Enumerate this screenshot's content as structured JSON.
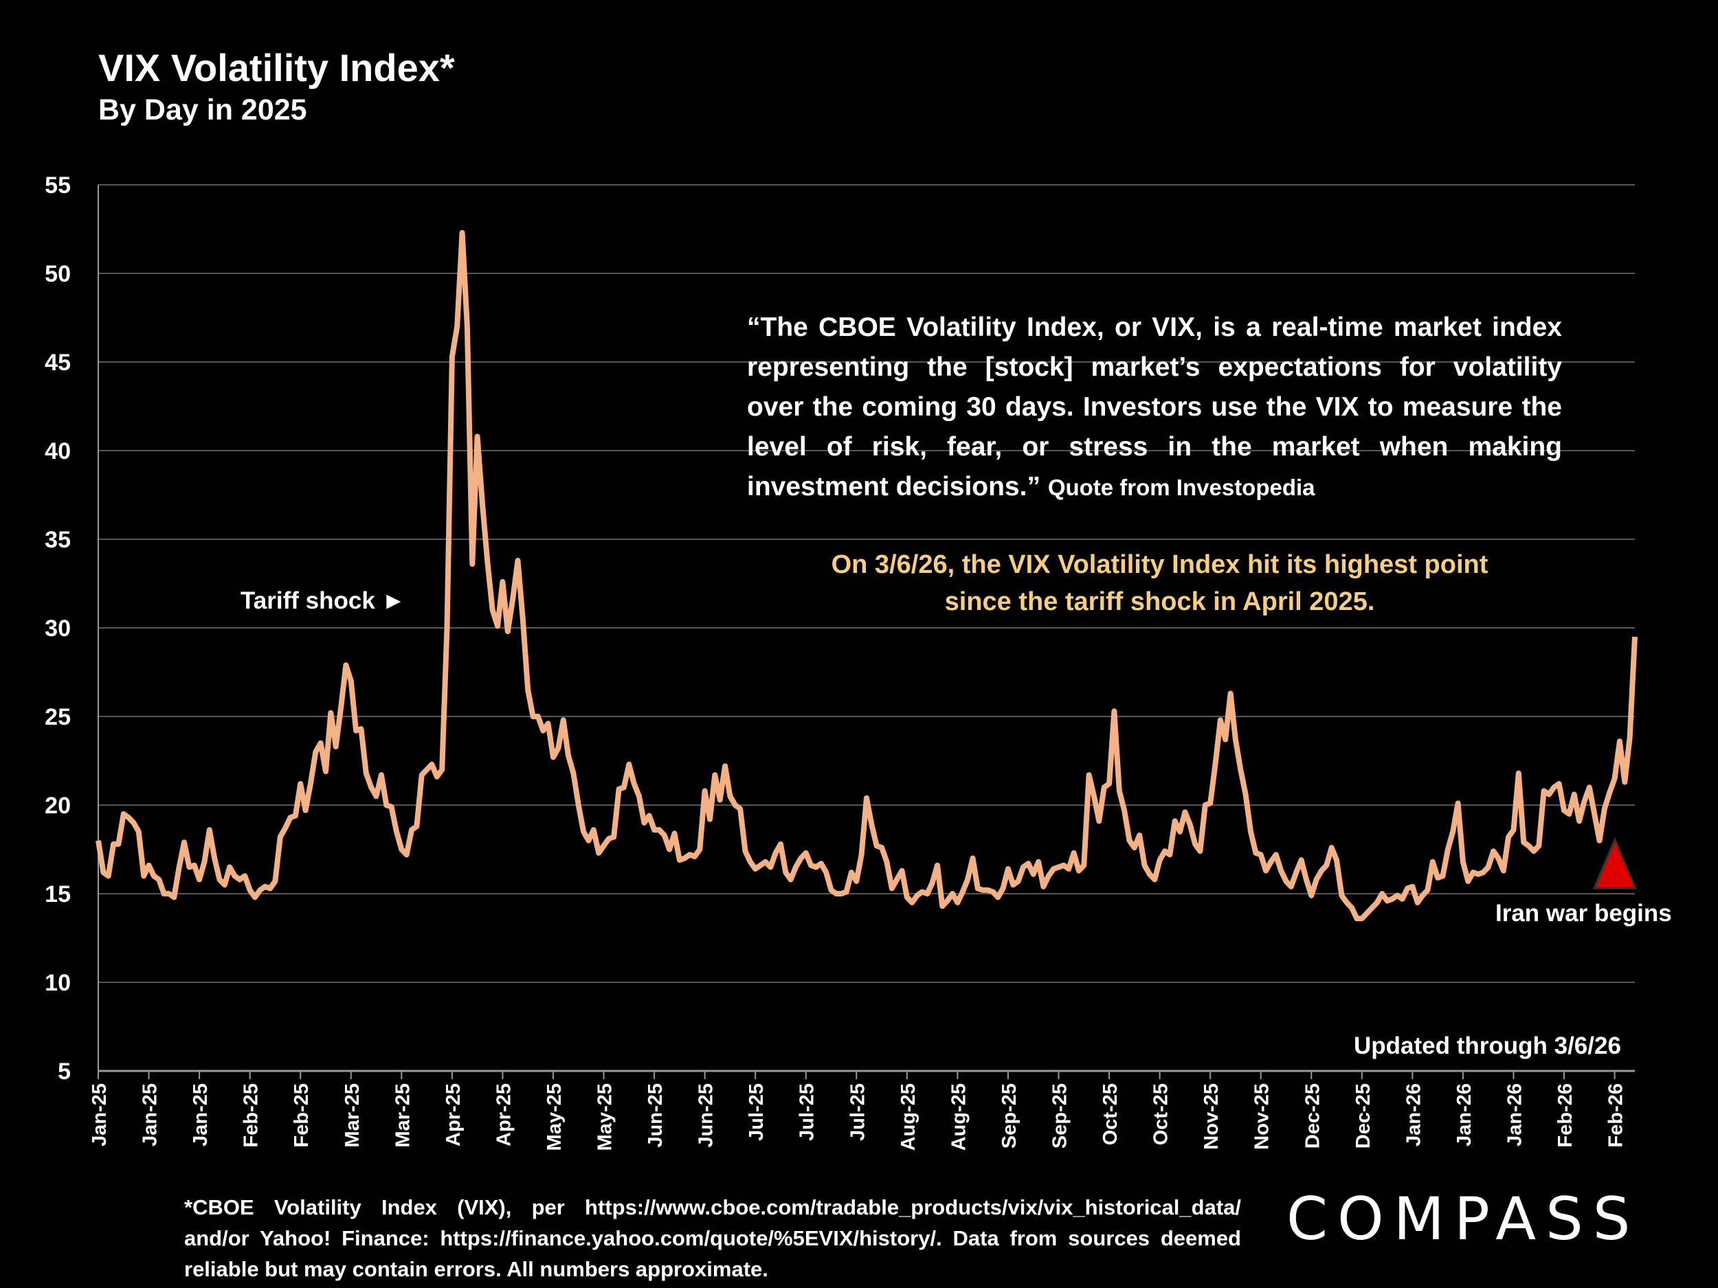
{
  "header": {
    "title": "VIX Volatility Index*",
    "subtitle": "By Day in 2025"
  },
  "quote": {
    "text": "“The CBOE Volatility Index, or VIX, is a real-time market index representing the [stock] market’s expectations for volatility over the coming 30 days. Investors use the VIX to measure the level of risk, fear, or stress in the market when making investment decisions.”",
    "source": "Quote from Investopedia"
  },
  "highlight": {
    "line1": "On 3/6/26, the VIX Volatility Index hit its highest point",
    "line2": "since the tariff shock in April 2025."
  },
  "annotations": {
    "tariff": "Tariff shock ►",
    "iran": "Iran war begins",
    "updated": "Updated through 3/6/26"
  },
  "footnote": "*CBOE Volatility Index (VIX), per https://www.cboe.com/tradable_products/vix/vix_historical_data/ and/or Yahoo! Finance: https://finance.yahoo.com/quote/%5EVIX/history/. Data from sources deemed reliable but may contain errors. All numbers approximate.",
  "logo": "COMPASS",
  "colors": {
    "line": "#f4b183",
    "highlight": "#f7cf7c",
    "marker": "#e00000",
    "grid": "#555555"
  },
  "chart_data": {
    "type": "line",
    "title": "VIX Volatility Index*",
    "subtitle": "By Day in 2025",
    "ylim": [
      5,
      55
    ],
    "yticks": [
      5,
      10,
      15,
      20,
      25,
      30,
      35,
      40,
      45,
      50,
      55
    ],
    "grid": true,
    "xtick_labels": [
      "Jan-25",
      "Jan-25",
      "Jan-25",
      "Feb-25",
      "Feb-25",
      "Mar-25",
      "Mar-25",
      "Apr-25",
      "Apr-25",
      "May-25",
      "May-25",
      "Jun-25",
      "Jun-25",
      "Jul-25",
      "Jul-25",
      "Jul-25",
      "Aug-25",
      "Aug-25",
      "Sep-25",
      "Sep-25",
      "Oct-25",
      "Oct-25",
      "Nov-25",
      "Nov-25",
      "Dec-25",
      "Dec-25",
      "Jan-26",
      "Jan-26",
      "Jan-26",
      "Feb-26",
      "Feb-26"
    ],
    "values": [
      18,
      16.2,
      16,
      17.8,
      17.8,
      19.5,
      19.3,
      19,
      18.5,
      16,
      16.6,
      16,
      15.8,
      15,
      15,
      14.8,
      16.5,
      17.9,
      16.5,
      16.6,
      15.8,
      16.8,
      18.6,
      17,
      15.8,
      15.5,
      16.5,
      16,
      15.8,
      16,
      15.2,
      14.8,
      15.2,
      15.4,
      15.3,
      15.7,
      18.2,
      18.7,
      19.3,
      19.4,
      21.2,
      19.7,
      21.2,
      23,
      23.5,
      21.9,
      25.2,
      23.3,
      25.5,
      27.9,
      27,
      24.2,
      24.3,
      21.8,
      21,
      20.5,
      21.7,
      20,
      19.9,
      18.5,
      17.5,
      17.2,
      18.6,
      18.8,
      21.7,
      22,
      22.3,
      21.6,
      22,
      30,
      45.3,
      47,
      52.3,
      47,
      33.6,
      40.8,
      37,
      33.7,
      31,
      30.1,
      32.6,
      29.8,
      31.6,
      33.8,
      30.5,
      26.5,
      25,
      25,
      24.2,
      24.6,
      22.7,
      23.2,
      24.8,
      22.8,
      21.8,
      20,
      18.5,
      18,
      18.6,
      17.3,
      17.7,
      18.1,
      18.2,
      20.9,
      21,
      22.3,
      21.2,
      20.5,
      19,
      19.4,
      18.6,
      18.6,
      18.3,
      17.5,
      18.4,
      16.9,
      17,
      17.2,
      17.1,
      17.5,
      20.8,
      19.2,
      21.7,
      20.3,
      22.2,
      20.5,
      20,
      19.8,
      17.4,
      16.8,
      16.4,
      16.6,
      16.8,
      16.5,
      17.3,
      17.8,
      16.2,
      15.8,
      16.5,
      17,
      17.3,
      16.6,
      16.5,
      16.7,
      16.2,
      15.2,
      15,
      15,
      15.1,
      16.2,
      15.7,
      17.2,
      20.4,
      18.9,
      17.7,
      17.6,
      16.8,
      15.3,
      15.8,
      16.3,
      14.8,
      14.5,
      14.9,
      15.1,
      15,
      15.6,
      16.6,
      14.3,
      14.6,
      15,
      14.5,
      15.1,
      15.8,
      17,
      15.3,
      15.2,
      15.2,
      15.1,
      14.8,
      15.3,
      16.4,
      15.5,
      15.7,
      16.5,
      16.7,
      16.1,
      16.8,
      15.4,
      16,
      16.4,
      16.5,
      16.6,
      16.4,
      17.3,
      16.3,
      16.6,
      21.7,
      20.5,
      19.1,
      21,
      21.2,
      25.3,
      20.8,
      19.7,
      18,
      17.6,
      18.3,
      16.6,
      16.1,
      15.8,
      16.9,
      17.4,
      17.2,
      19.1,
      18.5,
      19.6,
      18.9,
      17.8,
      17.4,
      20,
      20.1,
      22.3,
      24.8,
      23.7,
      26.3,
      23.7,
      22,
      20.6,
      18.5,
      17.3,
      17.2,
      16.3,
      16.8,
      17.2,
      16.3,
      15.7,
      15.4,
      16.2,
      16.9,
      15.8,
      14.9,
      15.8,
      16.3,
      16.6,
      17.6,
      16.9,
      14.9,
      14.5,
      14.2,
      13.6,
      13.6,
      13.9,
      14.2,
      14.5,
      15,
      14.6,
      14.7,
      14.9,
      14.7,
      15.3,
      15.4,
      14.5,
      14.9,
      15.2,
      16.8,
      15.9,
      16,
      17.5,
      18.5,
      20.1,
      16.8,
      15.7,
      16.2,
      16.1,
      16.2,
      16.5,
      17.4,
      17,
      16.3,
      18.2,
      18.6,
      21.8,
      17.9,
      17.7,
      17.4,
      17.7,
      20.8,
      20.6,
      21,
      21.2,
      19.7,
      19.5,
      20.6,
      19.1,
      20.2,
      21,
      19.5,
      18,
      19.8,
      20.7,
      21.5,
      23.6,
      21.3,
      23.8,
      29.5
    ]
  }
}
